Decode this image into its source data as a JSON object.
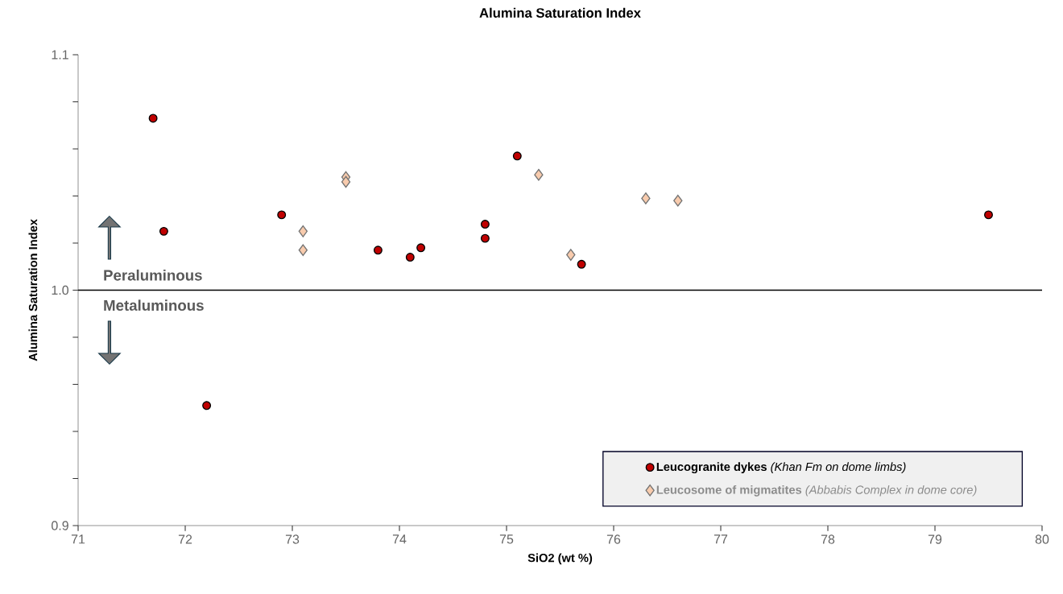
{
  "chart_data": {
    "type": "scatter",
    "title": "Alumina Saturation Index",
    "xlabel": "SiO2 (wt %)",
    "ylabel": "Alumina Saturation Index",
    "xlim": [
      71,
      80
    ],
    "xticks": [
      71,
      72,
      73,
      74,
      75,
      76,
      77,
      78,
      79,
      80
    ],
    "ylim": [
      0.9,
      1.1
    ],
    "yticks": [
      {
        "value": 0.9,
        "label": "0.9"
      },
      {
        "value": 0.92,
        "label": null
      },
      {
        "value": 0.94,
        "label": null
      },
      {
        "value": 0.96,
        "label": null
      },
      {
        "value": 0.98,
        "label": null
      },
      {
        "value": 1.0,
        "label": "1.0"
      },
      {
        "value": 1.02,
        "label": null
      },
      {
        "value": 1.04,
        "label": null
      },
      {
        "value": 1.06,
        "label": null
      },
      {
        "value": 1.08,
        "label": null
      },
      {
        "value": 1.1,
        "label": "1.1"
      }
    ],
    "grid": false,
    "legend": "bottom right",
    "ref_lines": [
      {
        "axis": "y",
        "value": 1.0,
        "color": "#000000"
      }
    ],
    "annotations": [
      "Peraluminous",
      "Metaluminous"
    ],
    "series": [
      {
        "name": "**Leucogranite dykes** *(Khan Fm on dome limbs)*",
        "color": "#c00000",
        "marker": "circle",
        "x": [
          71.7,
          71.8,
          72.2,
          72.9,
          73.8,
          74.1,
          74.2,
          74.8,
          74.8,
          75.1,
          75.7,
          79.5
        ],
        "values": [
          1.073,
          1.025,
          0.951,
          1.032,
          1.017,
          1.014,
          1.018,
          1.028,
          1.022,
          1.057,
          1.011,
          1.032
        ]
      },
      {
        "name": "**Leucosome of migmatites** *(Abbabis Complex in dome core)*",
        "color": "#f8cbad",
        "marker": "diamond",
        "x": [
          73.5,
          73.5,
          73.1,
          73.1,
          75.3,
          75.6,
          76.3,
          76.6
        ],
        "values": [
          1.048,
          1.046,
          1.025,
          1.017,
          1.049,
          1.015,
          1.039,
          1.038
        ]
      }
    ]
  }
}
